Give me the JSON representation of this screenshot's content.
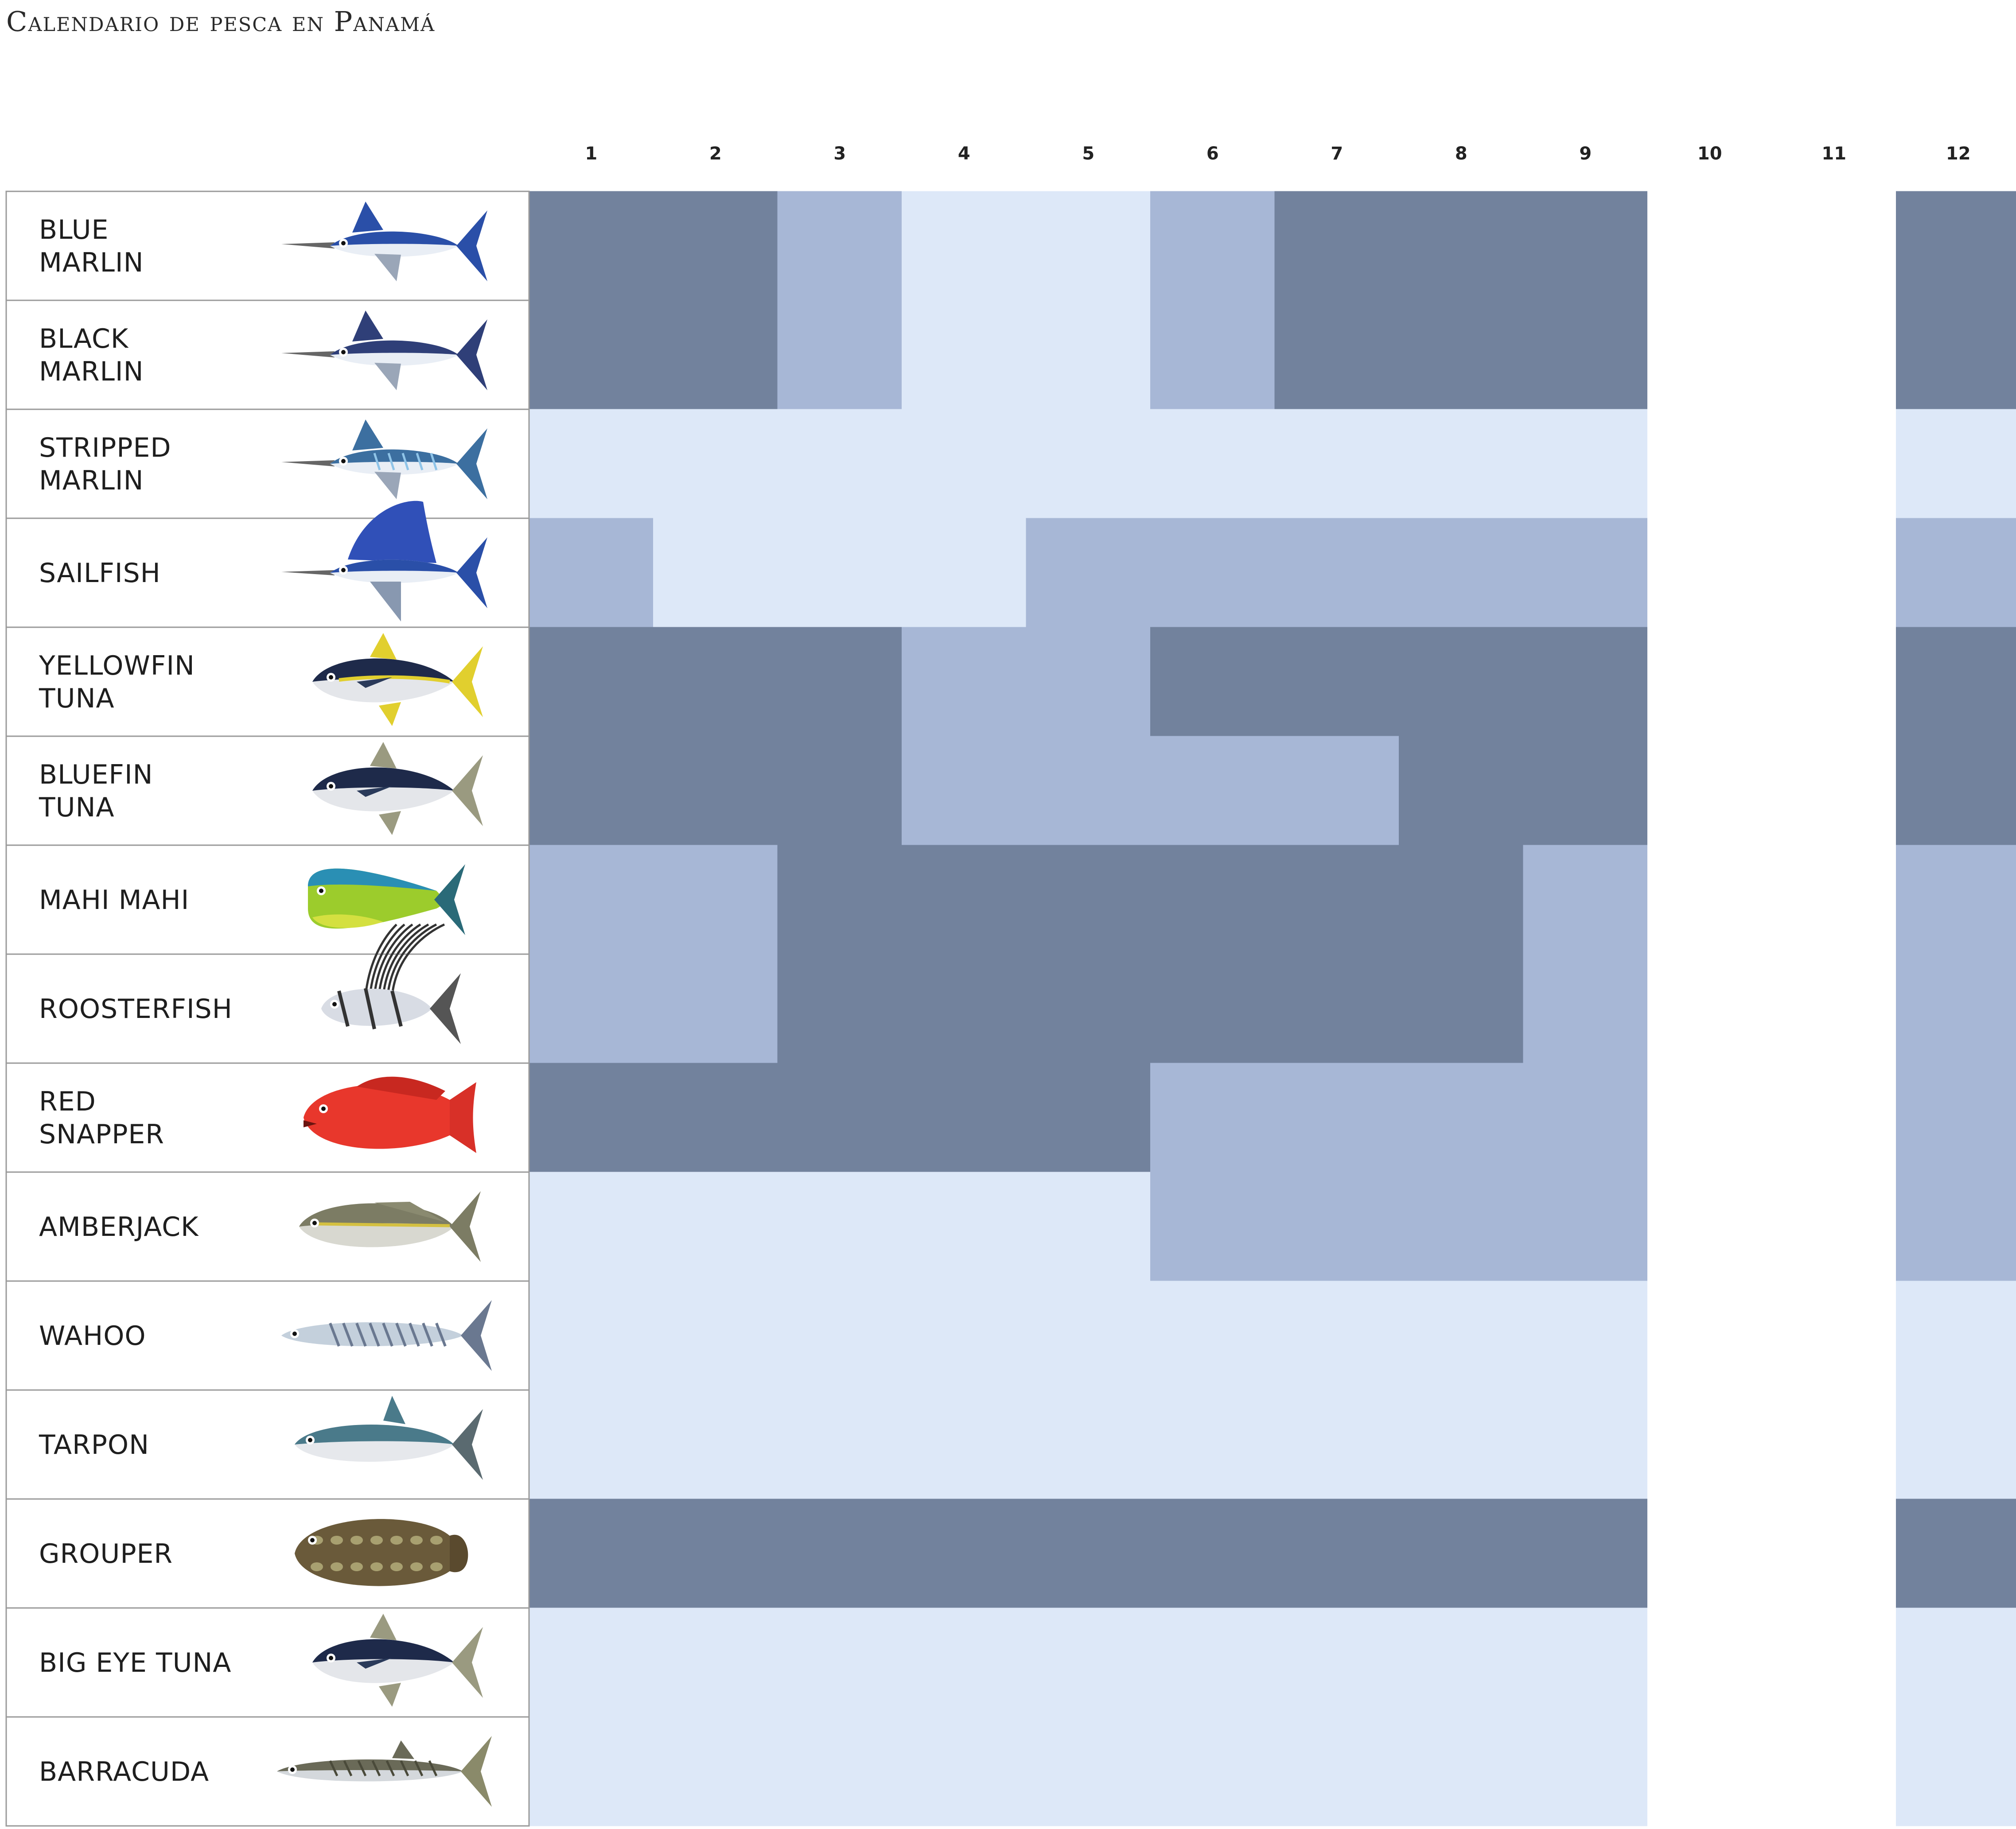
{
  "title": "Calendario de pesca en Panamá",
  "colors": {
    "high": "#72829d",
    "medium": "#a7b7d6",
    "low": "#dde8f8",
    "none": "#ffffff"
  },
  "chart_data": {
    "type": "heatmap",
    "title": "Calendario de pesca en Panamá",
    "months": [
      "1",
      "2",
      "3",
      "4",
      "5",
      "6",
      "7",
      "8",
      "9",
      "10",
      "11",
      "12"
    ],
    "levels": {
      "3": "high",
      "2": "medium",
      "1": "low",
      "0": "none"
    },
    "rows": [
      {
        "label": [
          "BLUE",
          "MARLIN"
        ],
        "icon": "blue-marlin-icon",
        "values": [
          3,
          3,
          2,
          1,
          1,
          2,
          3,
          3,
          3,
          0,
          0,
          3
        ]
      },
      {
        "label": [
          "BLACK",
          "MARLIN"
        ],
        "icon": "black-marlin-icon",
        "values": [
          3,
          3,
          2,
          1,
          1,
          2,
          3,
          3,
          3,
          0,
          0,
          3
        ]
      },
      {
        "label": [
          "STRIPPED",
          "MARLIN"
        ],
        "icon": "striped-marlin-icon",
        "values": [
          1,
          1,
          1,
          1,
          1,
          1,
          1,
          1,
          1,
          0,
          0,
          1
        ]
      },
      {
        "label": [
          "SAILFISH"
        ],
        "icon": "sailfish-icon",
        "values": [
          2,
          1,
          1,
          1,
          2,
          2,
          2,
          2,
          2,
          0,
          0,
          2
        ]
      },
      {
        "label": [
          "YELLOWFIN",
          "TUNA"
        ],
        "icon": "yellowfin-tuna-icon",
        "values": [
          3,
          3,
          3,
          2,
          2,
          3,
          3,
          3,
          3,
          0,
          0,
          3
        ]
      },
      {
        "label": [
          "BLUEFIN",
          "TUNA"
        ],
        "icon": "bluefin-tuna-icon",
        "values": [
          3,
          3,
          3,
          2,
          2,
          2,
          2,
          3,
          3,
          0,
          0,
          3
        ]
      },
      {
        "label": [
          "MAHI MAHI"
        ],
        "icon": "mahi-mahi-icon",
        "values": [
          2,
          2,
          3,
          3,
          3,
          3,
          3,
          3,
          2,
          0,
          0,
          2
        ]
      },
      {
        "label": [
          "ROOSTERFISH"
        ],
        "icon": "roosterfish-icon",
        "values": [
          2,
          2,
          3,
          3,
          3,
          3,
          3,
          3,
          2,
          0,
          0,
          2
        ]
      },
      {
        "label": [
          "RED",
          "SNAPPER"
        ],
        "icon": "red-snapper-icon",
        "values": [
          3,
          3,
          3,
          3,
          3,
          2,
          2,
          2,
          2,
          0,
          0,
          2
        ]
      },
      {
        "label": [
          "AMBERJACK"
        ],
        "icon": "amberjack-icon",
        "values": [
          1,
          1,
          1,
          1,
          1,
          2,
          2,
          2,
          2,
          0,
          0,
          2
        ]
      },
      {
        "label": [
          "WAHOO"
        ],
        "icon": "wahoo-icon",
        "values": [
          1,
          1,
          1,
          1,
          1,
          1,
          1,
          1,
          1,
          0,
          0,
          1
        ]
      },
      {
        "label": [
          "TARPON"
        ],
        "icon": "tarpon-icon",
        "values": [
          1,
          1,
          1,
          1,
          1,
          1,
          1,
          1,
          1,
          0,
          0,
          1
        ]
      },
      {
        "label": [
          "GROUPER"
        ],
        "icon": "grouper-icon",
        "values": [
          3,
          3,
          3,
          3,
          3,
          3,
          3,
          3,
          3,
          0,
          0,
          3
        ]
      },
      {
        "label": [
          "BIG EYE TUNA"
        ],
        "icon": "bigeye-tuna-icon",
        "values": [
          1,
          1,
          1,
          1,
          1,
          1,
          1,
          1,
          1,
          0,
          0,
          1
        ]
      },
      {
        "label": [
          "BARRACUDA"
        ],
        "icon": "barracuda-icon",
        "values": [
          1,
          1,
          1,
          1,
          1,
          1,
          1,
          1,
          1,
          0,
          0,
          1
        ]
      }
    ]
  }
}
